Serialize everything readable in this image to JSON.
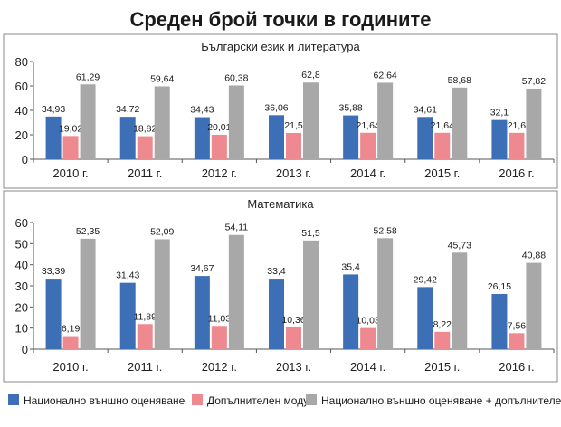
{
  "title": "Среден брой точки в годините",
  "legend": [
    {
      "label": "Национално външно оценяване",
      "color": "#3d6fb6"
    },
    {
      "label": "Допълнителен модул",
      "color": "#ee8a8f"
    },
    {
      "label": "Национално външно оценяване + допълнителен модул",
      "color": "#a8a8a8"
    }
  ],
  "chart_data": [
    {
      "type": "bar",
      "title": "Български език и литература",
      "categories": [
        "2010 г.",
        "2011 г.",
        "2012 г.",
        "2013 г.",
        "2014 г.",
        "2015 г.",
        "2016 г."
      ],
      "series": [
        {
          "name": "Национално външно оценяване",
          "values": [
            34.93,
            34.72,
            34.43,
            36.06,
            35.88,
            34.61,
            32.1
          ],
          "labels": [
            "34,93",
            "34,72",
            "34,43",
            "36,06",
            "35,88",
            "34,61",
            "32,1"
          ]
        },
        {
          "name": "Допълнителен модул",
          "values": [
            19.02,
            18.82,
            20.01,
            21.5,
            21.64,
            21.64,
            21.6
          ],
          "labels": [
            "19,02",
            "18,82",
            "20,01",
            "21,5",
            "21,64",
            "21,64",
            "21,6"
          ]
        },
        {
          "name": "Национално външно оценяване + допълнителен модул",
          "values": [
            61.29,
            59.64,
            60.38,
            62.8,
            62.64,
            58.68,
            57.82
          ],
          "labels": [
            "61,29",
            "59,64",
            "60,38",
            "62,8",
            "62,64",
            "58,68",
            "57,82"
          ]
        }
      ],
      "ylim": [
        0,
        80
      ],
      "yticks": [
        0,
        20,
        40,
        60,
        80
      ],
      "grid": false,
      "legend": "bottom"
    },
    {
      "type": "bar",
      "title": "Математика",
      "categories": [
        "2010 г.",
        "2011 г.",
        "2012 г.",
        "2013 г.",
        "2014 г.",
        "2015 г.",
        "2016 г."
      ],
      "series": [
        {
          "name": "Национално външно оценяване",
          "values": [
            33.39,
            31.43,
            34.67,
            33.4,
            35.4,
            29.42,
            26.15
          ],
          "labels": [
            "33,39",
            "31,43",
            "34,67",
            "33,4",
            "35,4",
            "29,42",
            "26,15"
          ]
        },
        {
          "name": "Допълнителен модул",
          "values": [
            6.19,
            11.89,
            11.03,
            10.36,
            10.03,
            8.22,
            7.56
          ],
          "labels": [
            "6,19",
            "11,89",
            "11,03",
            "10,36",
            "10,03",
            "8,22",
            "7,56"
          ]
        },
        {
          "name": "Национално външно оценяване + допълнителен модул",
          "values": [
            52.35,
            52.09,
            54.11,
            51.5,
            52.58,
            45.73,
            40.88
          ],
          "labels": [
            "52,35",
            "52,09",
            "54,11",
            "51,5",
            "52,58",
            "45,73",
            "40,88"
          ]
        }
      ],
      "ylim": [
        0,
        60
      ],
      "yticks": [
        0,
        10,
        20,
        30,
        40,
        50,
        60
      ],
      "grid": false,
      "legend": "bottom"
    }
  ]
}
